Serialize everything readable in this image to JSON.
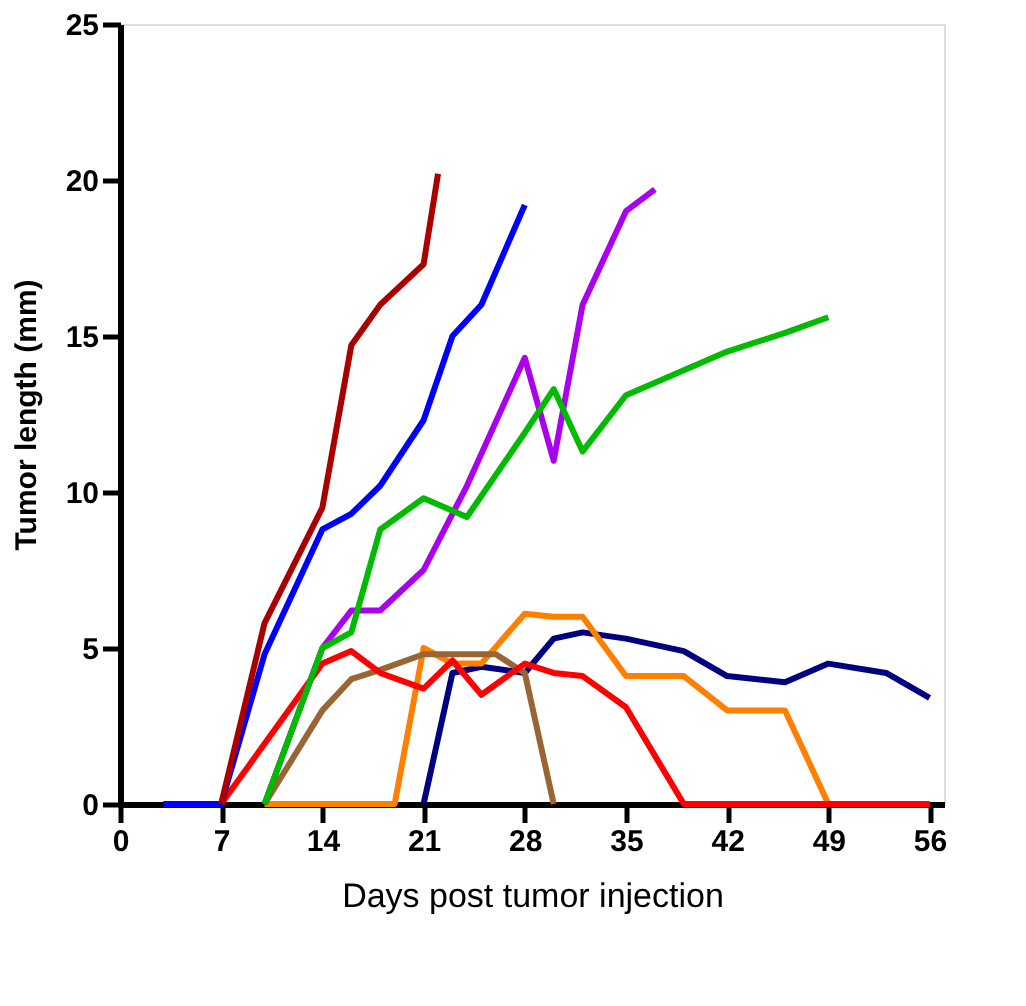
{
  "chart_data": {
    "type": "line",
    "xlabel": "Days post tumor injection",
    "ylabel": "Tumor length (mm)",
    "xlim": [
      0,
      57
    ],
    "xticks": [
      0,
      7,
      14,
      21,
      28,
      35,
      42,
      49,
      56
    ],
    "ylim": [
      0,
      25
    ],
    "yticks": [
      0,
      5,
      10,
      15,
      20,
      25
    ],
    "grid": false,
    "legend": false,
    "marker": "none",
    "line_style": "solid",
    "series": [
      {
        "color": "#000080",
        "x": [
          21,
          23,
          25,
          28,
          30,
          32,
          35,
          39,
          42,
          46,
          49,
          53,
          56
        ],
        "values": [
          0,
          4.2,
          4.4,
          4.2,
          5.3,
          5.5,
          5.3,
          4.9,
          4.1,
          3.9,
          4.5,
          4.2,
          3.4
        ]
      },
      {
        "color": "#ff8000",
        "x": [
          10,
          19,
          21,
          23,
          25,
          28,
          30,
          32,
          35,
          39,
          42,
          46,
          49,
          56
        ],
        "values": [
          0,
          0,
          5,
          4.5,
          4.5,
          6.1,
          6,
          6,
          4.1,
          4.1,
          3,
          3,
          0,
          0
        ]
      },
      {
        "color": "#996633",
        "x": [
          10,
          14,
          16,
          18,
          21,
          24,
          26,
          28,
          30
        ],
        "values": [
          0,
          3,
          4,
          4.3,
          4.8,
          4.8,
          4.8,
          4.2,
          0
        ]
      },
      {
        "color": "#ff0000",
        "x": [
          7,
          14,
          16,
          18,
          21,
          23,
          25,
          28,
          30,
          32,
          35,
          39,
          56
        ],
        "values": [
          0,
          4.5,
          4.9,
          4.2,
          3.7,
          4.6,
          3.5,
          4.5,
          4.2,
          4.1,
          3.1,
          0,
          0
        ]
      },
      {
        "color": "#aa00ee",
        "x": [
          10,
          14,
          16,
          18,
          21,
          24,
          28,
          30,
          32,
          35,
          37
        ],
        "values": [
          0,
          5,
          6.2,
          6.2,
          7.5,
          10.2,
          14.3,
          11,
          16,
          19,
          19.7
        ]
      },
      {
        "color": "#00bb00",
        "x": [
          10,
          14,
          16,
          18,
          21,
          24,
          28,
          30,
          32,
          35,
          42,
          46,
          49
        ],
        "values": [
          0,
          5,
          5.5,
          8.8,
          9.8,
          9.2,
          11.9,
          13.3,
          11.3,
          13.1,
          14.5,
          15.1,
          15.6
        ]
      },
      {
        "color": "#0000ff",
        "x": [
          3,
          7,
          10,
          14,
          16,
          18,
          21,
          23,
          25,
          28
        ],
        "values": [
          0,
          0,
          4.8,
          8.8,
          9.3,
          10.2,
          12.3,
          15,
          16,
          19.2
        ]
      },
      {
        "color": "#aa0000",
        "x": [
          7,
          10,
          14,
          16,
          18,
          21,
          22
        ],
        "values": [
          0,
          5.8,
          9.5,
          14.7,
          16,
          17.3,
          20.2
        ]
      }
    ]
  }
}
